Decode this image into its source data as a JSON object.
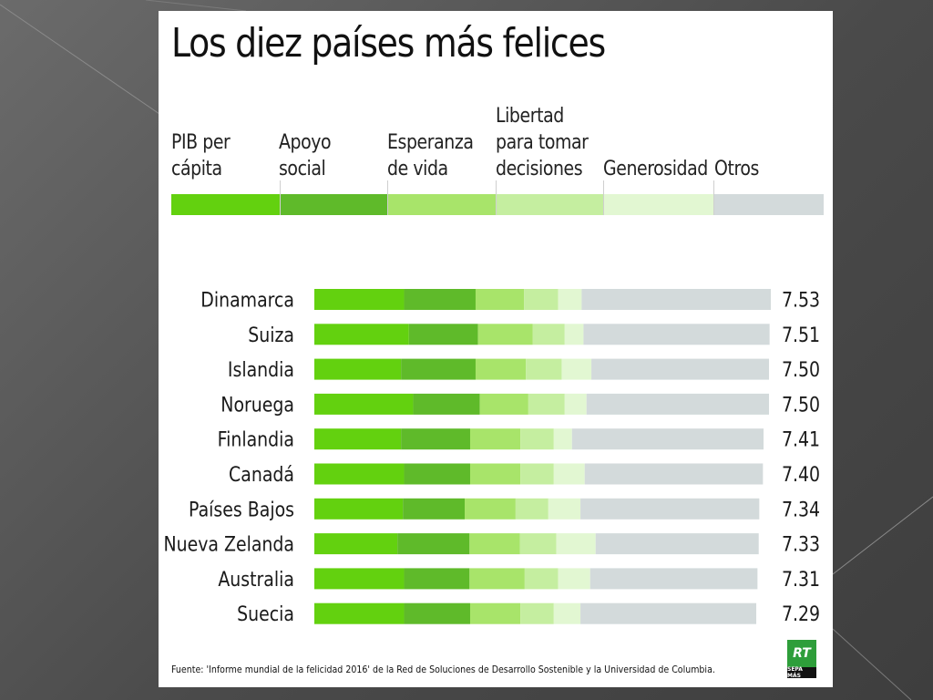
{
  "title": "Los diez países más felices",
  "legend": [
    {
      "label": "PIB per\ncápita",
      "color": "#63d10f"
    },
    {
      "label": "Apoyo\nsocial",
      "color": "#5fba2a"
    },
    {
      "label": "Esperanza\nde vida",
      "color": "#a8e46a"
    },
    {
      "label": "Libertad\npara tomar\ndecisiones",
      "color": "#c5eea0"
    },
    {
      "label": "Generosidad",
      "color": "#e2f7d2"
    },
    {
      "label": "Otros",
      "color": "#d3dadb"
    }
  ],
  "chart_data": {
    "type": "bar",
    "orientation": "horizontal",
    "stacked": true,
    "categories": [
      "Dinamarca",
      "Suiza",
      "Islandia",
      "Noruega",
      "Finlandia",
      "Canadá",
      "Países Bajos",
      "Nueva Zelanda",
      "Australia",
      "Suecia"
    ],
    "totals": [
      "7.53",
      "7.51",
      "7.50",
      "7.50",
      "7.41",
      "7.40",
      "7.34",
      "7.33",
      "7.31",
      "7.29"
    ],
    "series": [
      {
        "name": "PIB per cápita",
        "values": [
          1.48,
          1.56,
          1.43,
          1.63,
          1.43,
          1.48,
          1.46,
          1.37,
          1.48,
          1.48
        ]
      },
      {
        "name": "Apoyo social",
        "values": [
          1.18,
          1.14,
          1.23,
          1.1,
          1.14,
          1.09,
          1.02,
          1.19,
          1.08,
          1.09
        ]
      },
      {
        "name": "Esperanza de vida",
        "values": [
          0.8,
          0.9,
          0.83,
          0.8,
          0.83,
          0.83,
          0.84,
          0.83,
          0.91,
          0.83
        ]
      },
      {
        "name": "Libertad para tomar decisiones",
        "values": [
          0.56,
          0.53,
          0.59,
          0.6,
          0.55,
          0.55,
          0.54,
          0.6,
          0.55,
          0.55
        ]
      },
      {
        "name": "Generosidad",
        "values": [
          0.39,
          0.31,
          0.49,
          0.36,
          0.3,
          0.51,
          0.53,
          0.65,
          0.53,
          0.44
        ]
      },
      {
        "name": "Otros",
        "values": [
          3.12,
          3.07,
          2.93,
          3.01,
          3.16,
          2.94,
          2.95,
          2.69,
          2.76,
          2.9
        ]
      }
    ],
    "xlim": [
      0,
      7.53
    ],
    "grid": false,
    "legend": "top"
  },
  "source": "Fuente: 'Informe mundial de la felicidad 2016' de la Red de Soluciones de Desarrollo Sostenible y la Universidad de Columbia.",
  "logo": {
    "top": "RT",
    "bottom": "SEPA MÁS"
  }
}
